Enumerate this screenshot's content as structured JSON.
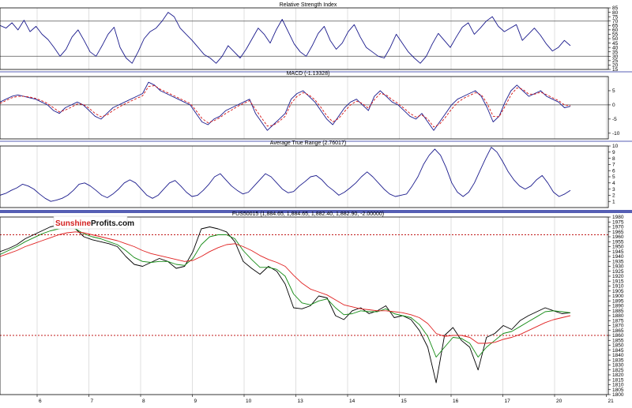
{
  "colors": {
    "background": "#ffffff",
    "frame": "#000000",
    "separator": "#1f2a9c",
    "rsi_line": "#1a1a8c",
    "macd_line": "#1a1a8c",
    "macd_signal": "#d41414",
    "atr_line": "#1a1a8c",
    "price_line": "#000000",
    "ma_fast": "#138a13",
    "ma_slow": "#e02020",
    "level_line": "#c01818",
    "grid": "#bfbfbf",
    "logo_red": "#d42020",
    "logo_dark": "#111111"
  },
  "logo": {
    "part1": "Sunshine",
    "part2": "Profits.com"
  },
  "chart_data": [
    {
      "type": "line",
      "title": "Relative Strength Index",
      "ylim": [
        15,
        85
      ],
      "y_ticks": [
        "85",
        "80",
        "75",
        "70",
        "65",
        "60",
        "55",
        "50",
        "45",
        "40",
        "35",
        "30",
        "25",
        "20",
        "15"
      ],
      "reference_lines": [
        70,
        30
      ],
      "series": [
        {
          "values": [
            65,
            62,
            68,
            60,
            71,
            58,
            64,
            55,
            49,
            40,
            30,
            38,
            52,
            60,
            48,
            35,
            30,
            42,
            55,
            63,
            40,
            28,
            22,
            35,
            50,
            58,
            62,
            70,
            80,
            75,
            62,
            55,
            48,
            40,
            32,
            28,
            22,
            30,
            42,
            35,
            28,
            38,
            50,
            62,
            55,
            45,
            60,
            72,
            58,
            44,
            35,
            30,
            42,
            56,
            64,
            48,
            38,
            45,
            58,
            66,
            52,
            40,
            35,
            30,
            28,
            40,
            55,
            45,
            35,
            28,
            22,
            30,
            44,
            56,
            48,
            40,
            52,
            63,
            68,
            55,
            62,
            70,
            75,
            64,
            58,
            62,
            66,
            48,
            55,
            62,
            54,
            44,
            36,
            40,
            48,
            42
          ]
        }
      ]
    },
    {
      "type": "line",
      "title": "MACD (-1.13328)",
      "ylim": [
        -12,
        10
      ],
      "y_ticks": [
        "5",
        "0",
        "-5",
        "-10"
      ],
      "reference_lines": [
        0
      ],
      "series": [
        {
          "values": [
            1,
            2,
            3,
            3.5,
            3,
            2.5,
            2,
            1,
            0,
            -2,
            -3,
            -1,
            0,
            1,
            0,
            -2,
            -4,
            -5,
            -3,
            -1,
            0,
            1,
            2,
            3,
            4,
            8,
            7,
            5,
            4,
            3,
            2,
            1,
            0,
            -3,
            -6,
            -7,
            -5,
            -4,
            -2,
            -1,
            0,
            1,
            2,
            -3,
            -6,
            -9,
            -7,
            -5,
            -3,
            2,
            4,
            5,
            3,
            1,
            -2,
            -5,
            -7,
            -4,
            -1,
            1,
            2,
            0,
            -2,
            3,
            5,
            3,
            1,
            0,
            -2,
            -4,
            -5,
            -3,
            -6,
            -9,
            -6,
            -3,
            0,
            2,
            3,
            4,
            5,
            3,
            -1,
            -6,
            -4,
            1,
            5,
            7,
            5,
            3,
            4,
            5,
            3,
            2,
            1,
            -1,
            -0.5
          ]
        },
        {
          "values": [
            0.5,
            1.5,
            2.5,
            3,
            3,
            2.8,
            2.3,
            1.5,
            0.5,
            -1,
            -2.5,
            -1.8,
            -0.8,
            0.3,
            0.2,
            -1.2,
            -3,
            -4.2,
            -3.6,
            -2,
            -0.8,
            0.3,
            1.3,
            2.3,
            3.2,
            6.5,
            6.8,
            5.5,
            4.5,
            3.5,
            2.5,
            1.5,
            0.5,
            -2,
            -4.8,
            -6.3,
            -5.6,
            -4.5,
            -3,
            -1.8,
            -0.5,
            0.5,
            1.5,
            -1.5,
            -4.5,
            -7.5,
            -7.2,
            -5.8,
            -4,
            0.5,
            3,
            4.3,
            3.5,
            1.8,
            -0.8,
            -3.8,
            -6,
            -4.8,
            -2.3,
            0,
            1.3,
            0.5,
            -1.2,
            1.8,
            4,
            3.5,
            1.8,
            0.5,
            -1.2,
            -3,
            -4.3,
            -3.6,
            -5,
            -7.8,
            -6.8,
            -4.3,
            -1.5,
            0.8,
            2.3,
            3.3,
            4.3,
            3.6,
            0.5,
            -4,
            -4.2,
            -0.5,
            3.5,
            6,
            5.5,
            3.8,
            3.8,
            4.5,
            3.6,
            2.5,
            1.5,
            0,
            -0.3
          ]
        }
      ]
    },
    {
      "type": "line",
      "title": "Average True Range (2.76017)",
      "ylim": [
        0,
        10
      ],
      "y_ticks": [
        "10",
        "9",
        "8",
        "7",
        "6",
        "5",
        "4",
        "3",
        "2",
        "1"
      ],
      "series": [
        {
          "values": [
            2,
            2.3,
            2.8,
            3.2,
            3.8,
            3.5,
            3,
            2.2,
            1.5,
            1,
            1.2,
            1.5,
            2,
            2.8,
            3.8,
            4,
            3.5,
            2.8,
            2,
            1.6,
            2.2,
            3,
            4,
            4.5,
            4,
            3,
            2,
            1.5,
            2,
            3,
            4,
            4.4,
            3.5,
            2.5,
            1.8,
            2,
            2.8,
            3.8,
            5,
            5.5,
            4.5,
            3.5,
            2.8,
            2.2,
            2.5,
            3.5,
            4.5,
            5.5,
            5,
            4,
            3,
            2.4,
            2.6,
            3.5,
            4.2,
            5,
            5.2,
            4.5,
            3.5,
            2.8,
            2,
            2.5,
            3.2,
            4,
            5,
            5.8,
            5,
            4,
            3,
            2.2,
            1.8,
            2,
            2.2,
            3.5,
            5,
            7,
            8.5,
            9.5,
            8.5,
            6.5,
            4,
            2.5,
            1.8,
            2.5,
            4,
            6,
            8,
            9.8,
            9,
            7.5,
            5.8,
            4.5,
            3.5,
            3,
            3.5,
            4.5,
            5.2,
            4,
            2.5,
            1.8,
            2.2,
            2.8
          ]
        }
      ]
    },
    {
      "type": "line",
      "title": "FUS50015 (1,884.65, 1,884.65, 1,882.40, 1,882.90, -2.00000)",
      "ylim": [
        1800,
        1980
      ],
      "y_ticks": [
        "1980",
        "1975",
        "1970",
        "1965",
        "1960",
        "1955",
        "1950",
        "1945",
        "1940",
        "1935",
        "1930",
        "1925",
        "1920",
        "1915",
        "1910",
        "1905",
        "1900",
        "1895",
        "1890",
        "1885",
        "1880",
        "1875",
        "1870",
        "1865",
        "1860",
        "1855",
        "1850",
        "1845",
        "1840",
        "1835",
        "1830",
        "1825",
        "1820",
        "1815",
        "1810",
        "1805",
        "1800"
      ],
      "x_ticks": [
        "6",
        "7",
        "8",
        "9",
        "10",
        "13",
        "14",
        "15",
        "16",
        "17",
        "20",
        "21"
      ],
      "reference_lines": [
        1962,
        1860
      ],
      "series": [
        {
          "values": [
            1945,
            1948,
            1952,
            1958,
            1962,
            1966,
            1970,
            1972,
            1974,
            1968,
            1960,
            1957,
            1955,
            1953,
            1950,
            1940,
            1932,
            1930,
            1934,
            1938,
            1935,
            1928,
            1930,
            1945,
            1968,
            1970,
            1968,
            1965,
            1955,
            1935,
            1928,
            1922,
            1930,
            1925,
            1912,
            1888,
            1887,
            1890,
            1900,
            1898,
            1880,
            1876,
            1885,
            1888,
            1882,
            1885,
            1890,
            1878,
            1880,
            1876,
            1865,
            1848,
            1812,
            1860,
            1868,
            1855,
            1848,
            1825,
            1858,
            1862,
            1870,
            1866,
            1875,
            1880,
            1884,
            1888,
            1885,
            1882,
            1883
          ]
        },
        {
          "values": [
            1942,
            1946,
            1950,
            1955,
            1959,
            1963,
            1966,
            1968,
            1970,
            1968,
            1963,
            1960,
            1958,
            1955,
            1952,
            1946,
            1939,
            1935,
            1934,
            1935,
            1935,
            1932,
            1931,
            1938,
            1952,
            1960,
            1962,
            1962,
            1958,
            1946,
            1937,
            1929,
            1929,
            1927,
            1920,
            1902,
            1893,
            1891,
            1895,
            1897,
            1888,
            1881,
            1882,
            1885,
            1884,
            1884,
            1887,
            1882,
            1880,
            1878,
            1871,
            1859,
            1838,
            1848,
            1858,
            1857,
            1852,
            1838,
            1848,
            1855,
            1862,
            1864,
            1869,
            1874,
            1879,
            1884,
            1885,
            1884,
            1883
          ]
        },
        {
          "values": [
            1940,
            1943,
            1946,
            1950,
            1953,
            1956,
            1959,
            1962,
            1964,
            1965,
            1964,
            1962,
            1960,
            1958,
            1956,
            1953,
            1950,
            1946,
            1943,
            1941,
            1939,
            1937,
            1935,
            1936,
            1940,
            1945,
            1949,
            1952,
            1953,
            1950,
            1946,
            1941,
            1937,
            1934,
            1930,
            1921,
            1913,
            1907,
            1904,
            1901,
            1896,
            1891,
            1889,
            1887,
            1886,
            1885,
            1885,
            1884,
            1883,
            1881,
            1878,
            1872,
            1862,
            1859,
            1860,
            1860,
            1858,
            1852,
            1852,
            1853,
            1856,
            1858,
            1861,
            1865,
            1869,
            1873,
            1876,
            1878,
            1880
          ]
        }
      ]
    }
  ]
}
